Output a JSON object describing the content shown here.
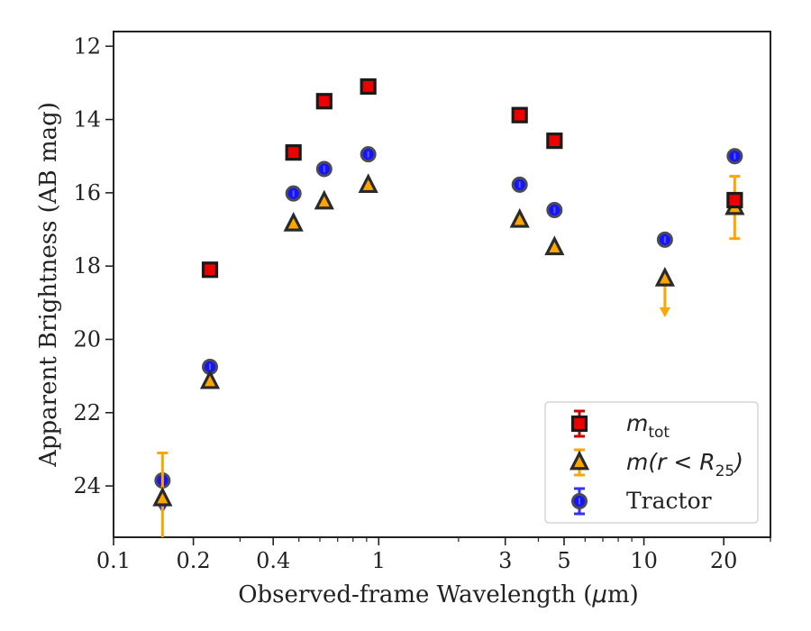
{
  "chart_data": {
    "type": "scatter",
    "x_scale": "log",
    "y_inverted": true,
    "xlim": [
      0.1,
      30
    ],
    "ylim": [
      25.4,
      11.6
    ],
    "xlabel_parts": [
      "Observed-frame Wavelength (",
      "μ",
      "m)"
    ],
    "ylabel": "Apparent Brightness (AB mag)",
    "x_ticks": [
      {
        "value": 0.1,
        "label": "0.1"
      },
      {
        "value": 0.2,
        "label": "0.2"
      },
      {
        "value": 0.4,
        "label": "0.4"
      },
      {
        "value": 1,
        "label": "1"
      },
      {
        "value": 3,
        "label": "3"
      },
      {
        "value": 5,
        "label": "5"
      },
      {
        "value": 10,
        "label": "10"
      },
      {
        "value": 20,
        "label": "20"
      }
    ],
    "x_minor_ticks": [
      0.3,
      0.5,
      0.6,
      0.7,
      0.8,
      0.9,
      2,
      4,
      6,
      7,
      8,
      9,
      30
    ],
    "y_ticks": [
      {
        "value": 12,
        "label": "12"
      },
      {
        "value": 14,
        "label": "14"
      },
      {
        "value": 16,
        "label": "16"
      },
      {
        "value": 18,
        "label": "18"
      },
      {
        "value": 20,
        "label": "20"
      },
      {
        "value": 22,
        "label": "22"
      },
      {
        "value": 24,
        "label": "24"
      }
    ],
    "grid": false,
    "legend_placement": "lower-right",
    "series": [
      {
        "key": "tractor",
        "legend_base": "Tractor",
        "legend_sub": "",
        "legend_tail": "",
        "marker": "circle",
        "fill": "#1414ff",
        "edge": "#333333",
        "errorbar_color": "#3030ff",
        "points": [
          {
            "x": 0.153,
            "y": 23.85
          },
          {
            "x": 0.231,
            "y": 20.75
          },
          {
            "x": 0.477,
            "y": 16.02
          },
          {
            "x": 0.623,
            "y": 15.35
          },
          {
            "x": 0.913,
            "y": 14.95
          },
          {
            "x": 3.4,
            "y": 15.78
          },
          {
            "x": 4.6,
            "y": 16.47
          },
          {
            "x": 12.0,
            "y": 17.28
          },
          {
            "x": 22.0,
            "y": 15.0
          }
        ],
        "upper_limits": [
          {
            "x": 0.153,
            "y": 24.6
          }
        ]
      },
      {
        "key": "r25",
        "legend_base": "m(r < R",
        "legend_sub": "25",
        "legend_tail": ")",
        "marker": "triangle",
        "fill": "#ffa500",
        "edge": "#2a2a2a",
        "errorbar_color": "#ffa500",
        "points": [
          {
            "x": 0.153,
            "y": 24.35
          },
          {
            "x": 0.231,
            "y": 21.15
          },
          {
            "x": 0.477,
            "y": 16.85
          },
          {
            "x": 0.623,
            "y": 16.25
          },
          {
            "x": 0.913,
            "y": 15.8
          },
          {
            "x": 3.4,
            "y": 16.75
          },
          {
            "x": 4.6,
            "y": 17.5
          },
          {
            "x": 12.0,
            "y": 18.35
          },
          {
            "x": 22.0,
            "y": 16.4
          }
        ],
        "error_bars": [
          {
            "x": 0.153,
            "y_low": 23.1,
            "y_high": 25.4
          },
          {
            "x": 22.0,
            "y_low": 15.55,
            "y_high": 17.25
          }
        ],
        "upper_limits": [
          {
            "x": 12.0,
            "y": 18.35,
            "arrow_to": 19.35
          }
        ]
      },
      {
        "key": "mtot",
        "legend_base": "m",
        "legend_sub": "tot",
        "legend_tail": "",
        "marker": "square",
        "fill": "#ee0000",
        "edge": "#1a1a1a",
        "errorbar_color": "#cc0000",
        "points": [
          {
            "x": 0.231,
            "y": 18.1
          },
          {
            "x": 0.477,
            "y": 14.9
          },
          {
            "x": 0.623,
            "y": 13.5
          },
          {
            "x": 0.913,
            "y": 13.1
          },
          {
            "x": 3.4,
            "y": 13.88
          },
          {
            "x": 4.6,
            "y": 14.58
          },
          {
            "x": 22.0,
            "y": 16.2
          }
        ]
      }
    ],
    "legend_order": [
      "mtot",
      "r25",
      "tractor"
    ]
  }
}
